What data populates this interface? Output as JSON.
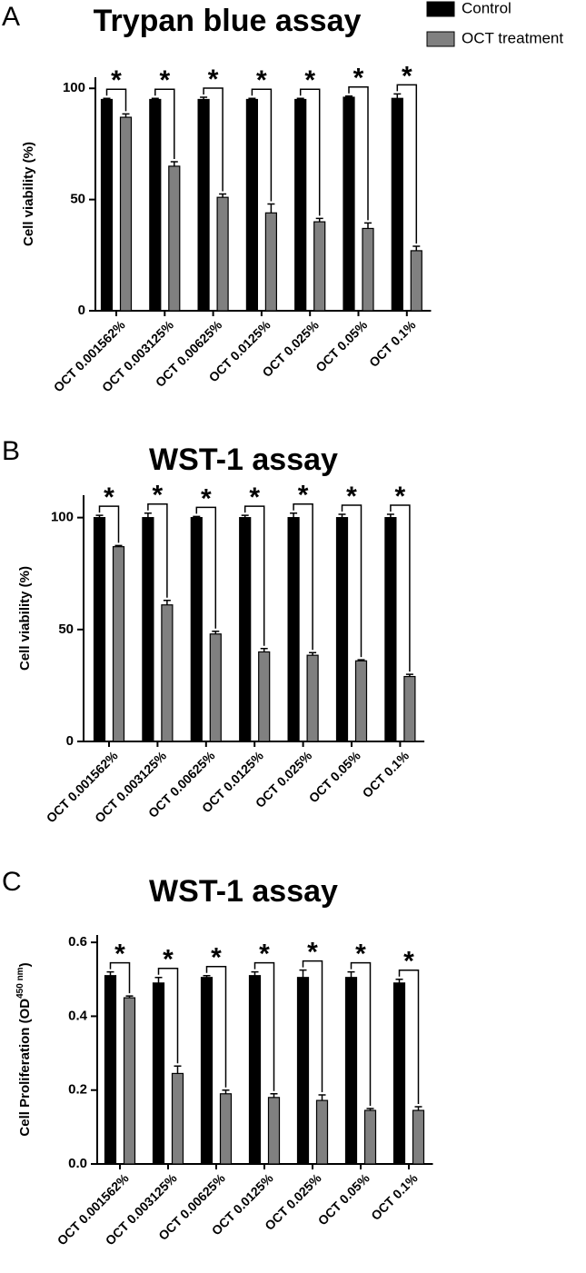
{
  "chart_data": [
    {
      "type": "bar",
      "panel": "A",
      "title": "Trypan blue assay",
      "ylabel": [
        "Cell viability (%)"
      ],
      "categories": [
        "OCT 0.001562%",
        "OCT 0.003125%",
        "OCT 0.00625%",
        "OCT 0.0125%",
        "OCT 0.025%",
        "OCT 0.05%",
        "OCT 0.1%"
      ],
      "series": [
        {
          "name": "Control",
          "color": "#000000",
          "values": [
            95,
            95,
            95,
            95,
            95,
            96,
            95.5
          ],
          "errors": [
            0.5,
            0.5,
            1,
            0.5,
            0.5,
            0.5,
            2
          ]
        },
        {
          "name": "OCT treatment",
          "color": "#808080",
          "values": [
            87,
            65,
            51,
            44,
            40,
            37,
            27
          ],
          "errors": [
            1.5,
            2,
            1.5,
            4,
            1.5,
            2.5,
            2
          ]
        }
      ],
      "significance": [
        "*",
        "*",
        "*",
        "*",
        "*",
        "*",
        "*"
      ],
      "ylim": [
        0,
        105
      ],
      "yticks": [
        0,
        50,
        100
      ]
    },
    {
      "type": "bar",
      "panel": "B",
      "title": "WST-1 assay",
      "ylabel": [
        "Cell viability (%)"
      ],
      "categories": [
        "OCT 0.001562%",
        "OCT 0.003125%",
        "OCT 0.00625%",
        "OCT 0.0125%",
        "OCT 0.025%",
        "OCT 0.05%",
        "OCT 0.1%"
      ],
      "series": [
        {
          "color": "#000000",
          "values": [
            100,
            100,
            100,
            100,
            100,
            100,
            100
          ],
          "errors": [
            1,
            2,
            0.5,
            1,
            2,
            1.5,
            1.5
          ]
        },
        {
          "color": "#808080",
          "values": [
            87,
            61,
            48,
            40,
            38.5,
            36,
            29
          ],
          "errors": [
            0.5,
            2,
            1.2,
            1.5,
            1.2,
            0.5,
            1
          ]
        }
      ],
      "significance": [
        "*",
        "*",
        "*",
        "*",
        "*",
        "*",
        "*"
      ],
      "ylim": [
        0,
        110
      ],
      "yticks": [
        0,
        50,
        100
      ]
    },
    {
      "type": "bar",
      "panel": "C",
      "title": "WST-1 assay",
      "ylabel": [
        "Cell Proliferation (OD",
        "450 nm",
        ")"
      ],
      "categories": [
        "OCT 0.001562%",
        "OCT 0.003125%",
        "OCT 0.00625%",
        "OCT 0.0125%",
        "OCT 0.025%",
        "OCT 0.05%",
        "OCT 0.1%"
      ],
      "series": [
        {
          "color": "#000000",
          "values": [
            0.51,
            0.49,
            0.505,
            0.51,
            0.505,
            0.505,
            0.49
          ],
          "errors": [
            0.01,
            0.015,
            0.005,
            0.01,
            0.02,
            0.015,
            0.01
          ]
        },
        {
          "color": "#808080",
          "values": [
            0.45,
            0.245,
            0.19,
            0.18,
            0.172,
            0.145,
            0.145
          ],
          "errors": [
            0.005,
            0.02,
            0.01,
            0.01,
            0.015,
            0.005,
            0.01
          ]
        }
      ],
      "significance": [
        "*",
        "*",
        "*",
        "*",
        "*",
        "*",
        "*"
      ],
      "ylim": [
        0,
        0.62
      ],
      "yticks": [
        {
          "value": 0,
          "label": "0.0"
        },
        0.2,
        0.4,
        0.6
      ]
    }
  ]
}
